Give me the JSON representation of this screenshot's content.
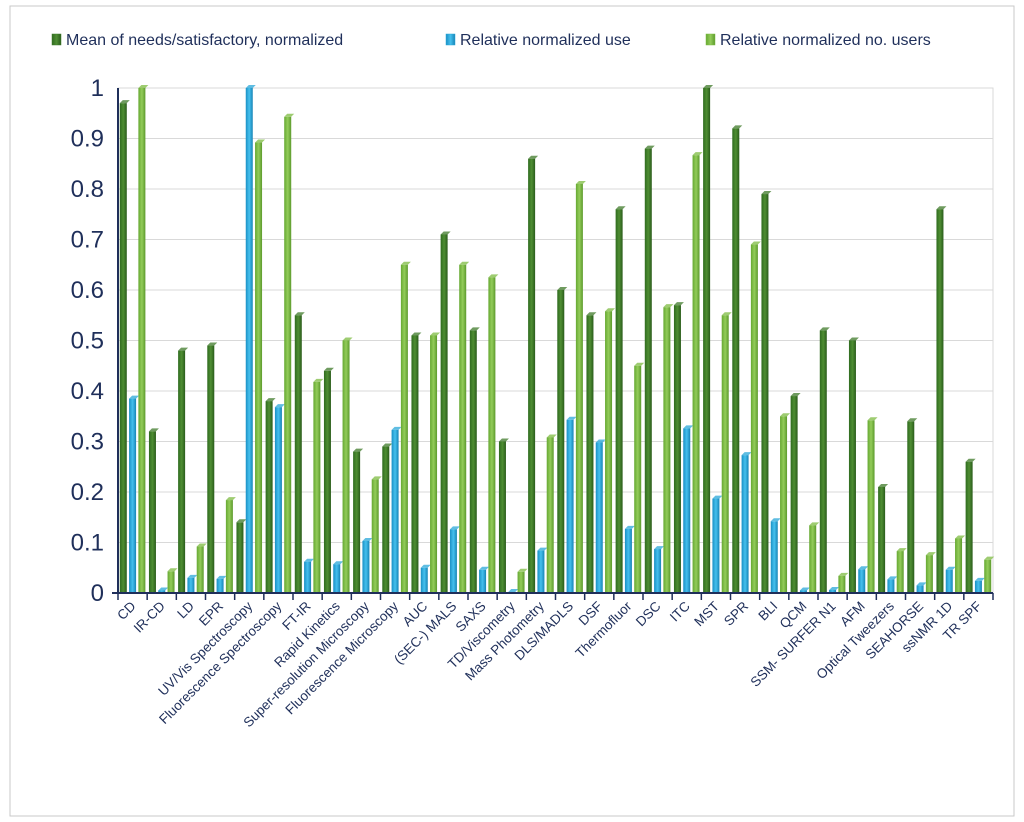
{
  "chart_data": {
    "type": "bar",
    "categories": [
      "CD",
      "IR-CD",
      "LD",
      "EPR",
      "UV/Vis Spectroscopy",
      "Fluorescence Spectroscopy",
      "FT-IR",
      "Rapid Kinetics",
      "Super-resolution Microscopy",
      "Fluorescence Microscopy",
      "AUC",
      "(SEC-) MALS",
      "SAXS",
      "TD/Viscometry",
      "Mass Photometry",
      "DLS/MADLS",
      "DSF",
      "Thermofluor",
      "DSC",
      "ITC",
      "MST",
      "SPR",
      "BLI",
      "QCM",
      "SSM- SURFER N1",
      "AFM",
      "Optical Tweezers",
      "SEAHORSE",
      "ssNMR 1D",
      "TR SPF"
    ],
    "series": [
      {
        "name": "Mean of needs/satisfactory, normalized",
        "color": "#3f7a2a",
        "values": [
          0.97,
          0.32,
          0.48,
          0.49,
          0.14,
          0.38,
          0.55,
          0.44,
          0.28,
          0.29,
          0.51,
          0.71,
          0.52,
          0.3,
          0.86,
          0.6,
          0.55,
          0.76,
          0.88,
          0.57,
          1.0,
          0.92,
          0.79,
          0.39,
          0.52,
          0.5,
          0.21,
          0.34,
          0.76,
          0.26
        ]
      },
      {
        "name": "Relative normalized use",
        "color": "#2aa7d8",
        "values": [
          0.385,
          0.005,
          0.03,
          0.028,
          1.0,
          0.368,
          0.062,
          0.057,
          0.103,
          0.323,
          0.05,
          0.126,
          0.046,
          0.002,
          0.084,
          0.343,
          0.298,
          0.127,
          0.087,
          0.326,
          0.187,
          0.273,
          0.142,
          0.005,
          0.006,
          0.047,
          0.027,
          0.015,
          0.046,
          0.024
        ]
      },
      {
        "name": "Relative normalized no. users",
        "color": "#7dbb42",
        "values": [
          1.0,
          0.043,
          0.092,
          0.184,
          0.892,
          0.943,
          0.418,
          0.5,
          0.225,
          0.65,
          0.51,
          0.65,
          0.625,
          0.042,
          0.308,
          0.81,
          0.558,
          0.45,
          0.566,
          0.867,
          0.55,
          0.69,
          0.35,
          0.134,
          0.034,
          0.342,
          0.083,
          0.075,
          0.108,
          0.066
        ]
      }
    ],
    "ylim": [
      0,
      1
    ],
    "yticks": [
      "0",
      "0.1",
      "0.2",
      "0.3",
      "0.4",
      "0.5",
      "0.6",
      "0.7",
      "0.8",
      "0.9",
      "1"
    ],
    "grid": true,
    "legend_position": "top"
  }
}
